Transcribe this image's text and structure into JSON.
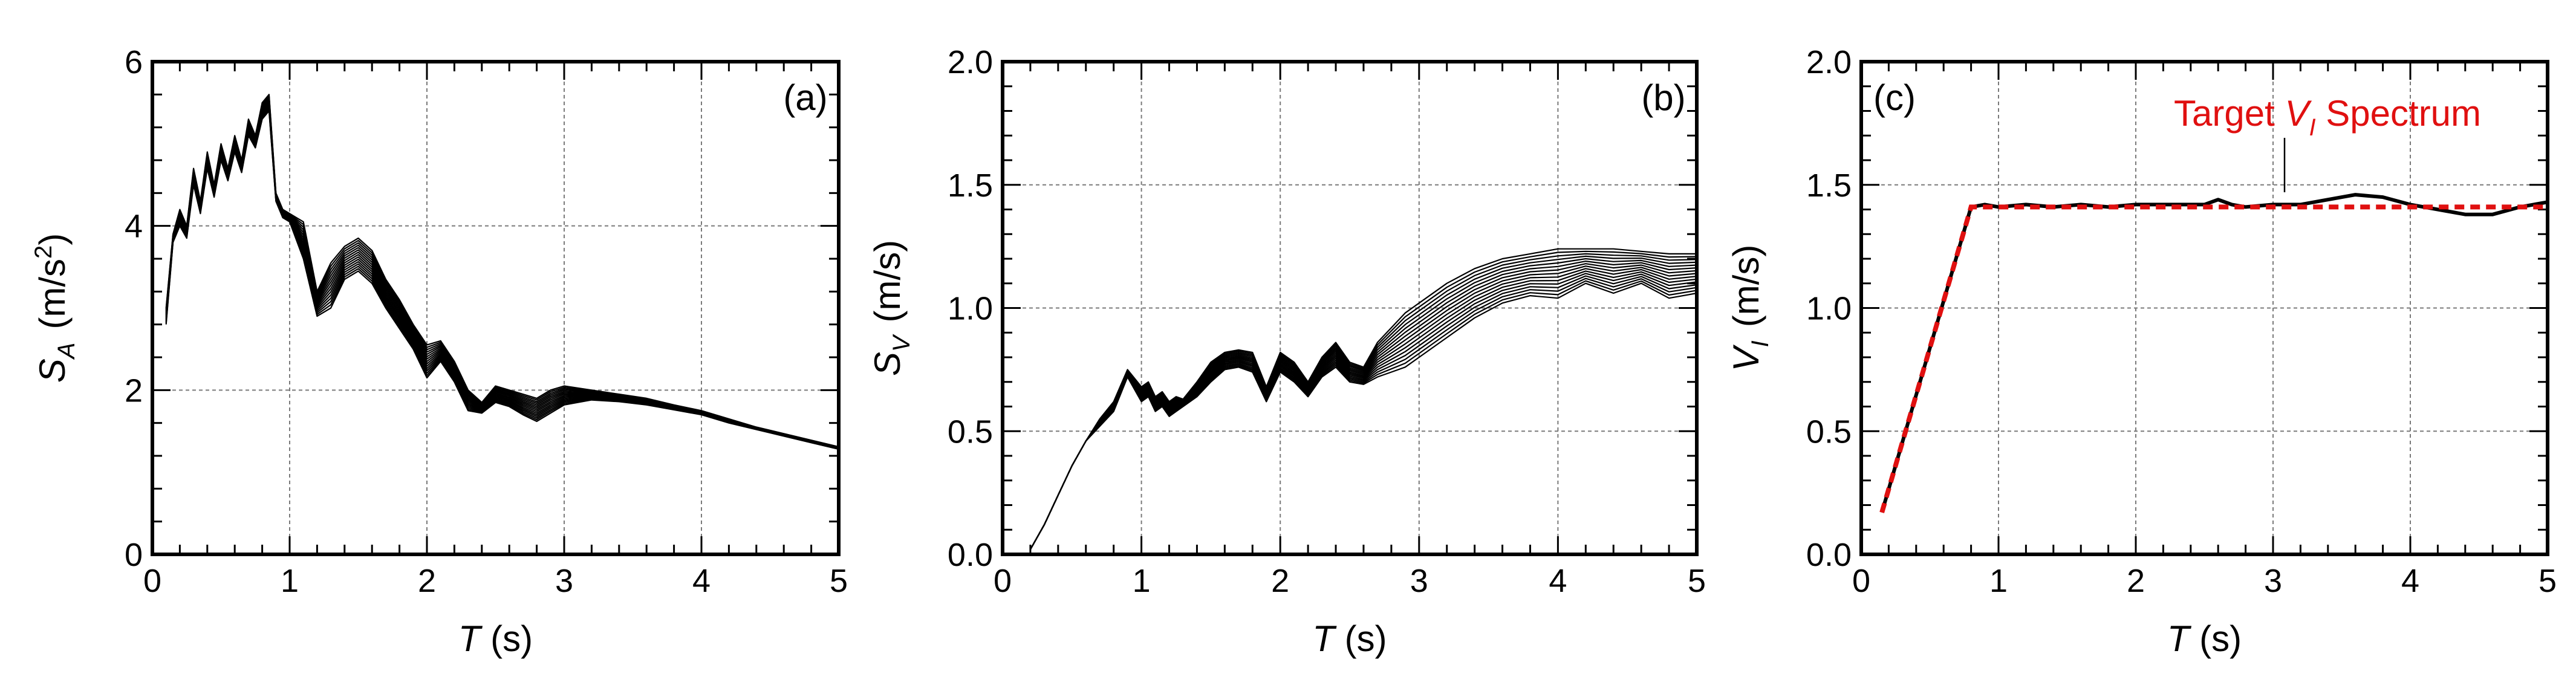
{
  "colors": {
    "ink": "#000000",
    "grid": "#7a7a7a",
    "target": "#e01010"
  },
  "chart_data": [
    {
      "type": "line",
      "panel_label": "(a)",
      "xlabel": {
        "symbol": "T",
        "unit": " (s)"
      },
      "ylabel": {
        "symbol": "S",
        "subscript": "A",
        "unit_main": "(m/s",
        "unit_sup": "2",
        "unit_close": ")"
      },
      "xlim": [
        0,
        5
      ],
      "ylim": [
        0,
        6
      ],
      "xticks": [
        "0",
        "1",
        "2",
        "3",
        "4",
        "5"
      ],
      "yticks": [
        "0",
        "2",
        "4",
        "6"
      ],
      "grid": true,
      "envelope": {
        "x": [
          0.1,
          0.15,
          0.2,
          0.25,
          0.3,
          0.35,
          0.4,
          0.45,
          0.5,
          0.55,
          0.6,
          0.65,
          0.7,
          0.75,
          0.8,
          0.85,
          0.9,
          0.95,
          1.0,
          1.1,
          1.2,
          1.3,
          1.4,
          1.5,
          1.6,
          1.7,
          1.8,
          1.9,
          2.0,
          2.1,
          2.2,
          2.3,
          2.4,
          2.5,
          2.6,
          2.7,
          2.8,
          2.9,
          3.0,
          3.2,
          3.4,
          3.6,
          3.8,
          4.0,
          4.2,
          4.4,
          4.6,
          4.8,
          5.0
        ],
        "upper": [
          3.0,
          3.9,
          4.2,
          4.0,
          4.7,
          4.3,
          4.9,
          4.5,
          5.0,
          4.7,
          5.1,
          4.8,
          5.3,
          5.1,
          5.5,
          5.6,
          4.4,
          4.2,
          4.15,
          4.05,
          3.2,
          3.55,
          3.75,
          3.85,
          3.7,
          3.35,
          3.1,
          2.8,
          2.55,
          2.6,
          2.35,
          2.0,
          1.85,
          2.05,
          2.0,
          1.95,
          1.9,
          2.0,
          2.05,
          2.0,
          1.95,
          1.9,
          1.82,
          1.75,
          1.65,
          1.55,
          1.47,
          1.39,
          1.31
        ],
        "lower": [
          2.8,
          3.8,
          4.0,
          3.85,
          4.5,
          4.15,
          4.7,
          4.35,
          4.8,
          4.55,
          4.9,
          4.65,
          5.1,
          4.95,
          5.3,
          5.4,
          4.3,
          4.1,
          4.05,
          3.6,
          2.9,
          3.0,
          3.35,
          3.45,
          3.3,
          3.0,
          2.75,
          2.5,
          2.15,
          2.35,
          2.1,
          1.75,
          1.72,
          1.85,
          1.8,
          1.7,
          1.62,
          1.72,
          1.82,
          1.88,
          1.86,
          1.82,
          1.76,
          1.7,
          1.6,
          1.52,
          1.44,
          1.36,
          1.28
        ]
      },
      "series_count": 15
    },
    {
      "type": "line",
      "panel_label": "(b)",
      "xlabel": {
        "symbol": "T",
        "unit": " (s)"
      },
      "ylabel": {
        "symbol": "S",
        "subscript": "V",
        "unit_main": "(m/s)"
      },
      "xlim": [
        0,
        5
      ],
      "ylim": [
        0,
        2
      ],
      "xticks": [
        "0",
        "1",
        "2",
        "3",
        "4",
        "5"
      ],
      "yticks": [
        "0.0",
        "0.5",
        "1.0",
        "1.5",
        "2.0"
      ],
      "grid": true,
      "envelope": {
        "x": [
          0.2,
          0.3,
          0.4,
          0.5,
          0.6,
          0.7,
          0.8,
          0.9,
          1.0,
          1.05,
          1.1,
          1.15,
          1.2,
          1.25,
          1.3,
          1.4,
          1.5,
          1.6,
          1.7,
          1.8,
          1.9,
          2.0,
          2.1,
          2.2,
          2.3,
          2.4,
          2.5,
          2.6,
          2.7,
          2.8,
          2.9,
          3.0,
          3.2,
          3.4,
          3.6,
          3.8,
          4.0,
          4.2,
          4.4,
          4.6,
          4.8,
          5.0
        ],
        "upper": [
          0.02,
          0.12,
          0.24,
          0.36,
          0.46,
          0.55,
          0.62,
          0.75,
          0.68,
          0.7,
          0.64,
          0.66,
          0.62,
          0.64,
          0.63,
          0.7,
          0.78,
          0.82,
          0.83,
          0.82,
          0.68,
          0.82,
          0.78,
          0.7,
          0.8,
          0.86,
          0.78,
          0.76,
          0.86,
          0.92,
          0.98,
          1.02,
          1.1,
          1.16,
          1.2,
          1.22,
          1.24,
          1.24,
          1.24,
          1.23,
          1.22,
          1.22
        ],
        "lower": [
          0.02,
          0.12,
          0.24,
          0.36,
          0.46,
          0.52,
          0.58,
          0.72,
          0.62,
          0.64,
          0.58,
          0.6,
          0.56,
          0.58,
          0.6,
          0.64,
          0.7,
          0.75,
          0.76,
          0.74,
          0.62,
          0.74,
          0.7,
          0.64,
          0.72,
          0.76,
          0.7,
          0.69,
          0.72,
          0.74,
          0.76,
          0.8,
          0.88,
          0.96,
          1.02,
          1.05,
          1.04,
          1.1,
          1.06,
          1.1,
          1.04,
          1.06
        ]
      },
      "series_count": 15
    },
    {
      "type": "line",
      "panel_label": "(c)",
      "xlabel": {
        "symbol": "T",
        "unit": " (s)"
      },
      "ylabel": {
        "symbol": "V",
        "subscript": "I",
        "unit_main": "(m/s)"
      },
      "xlim": [
        0,
        5
      ],
      "ylim": [
        0,
        2
      ],
      "xticks": [
        "0",
        "1",
        "2",
        "3",
        "4",
        "5"
      ],
      "yticks": [
        "0.0",
        "0.5",
        "1.0",
        "1.5",
        "2.0"
      ],
      "grid": true,
      "legend_position": "top-right",
      "annotation": {
        "text_main": "Target ",
        "symbol": "V",
        "subscript": "I",
        "text_tail": " Spectrum"
      },
      "series": [
        {
          "name": "",
          "style": "solid",
          "x": [
            0.15,
            0.8,
            0.9,
            1.0,
            1.2,
            1.4,
            1.6,
            1.8,
            2.0,
            2.2,
            2.4,
            2.5,
            2.6,
            2.7,
            2.8,
            3.0,
            3.2,
            3.4,
            3.6,
            3.8,
            4.0,
            4.2,
            4.4,
            4.6,
            4.8,
            5.0
          ],
          "y": [
            0.17,
            1.41,
            1.42,
            1.41,
            1.42,
            1.41,
            1.42,
            1.41,
            1.42,
            1.42,
            1.42,
            1.42,
            1.44,
            1.42,
            1.41,
            1.42,
            1.42,
            1.44,
            1.46,
            1.45,
            1.42,
            1.4,
            1.38,
            1.38,
            1.41,
            1.43
          ]
        },
        {
          "name": "Target V_I Spectrum",
          "style": "dashed",
          "x": [
            0.15,
            0.8,
            5.0
          ],
          "y": [
            0.17,
            1.41,
            1.41
          ]
        }
      ]
    }
  ]
}
